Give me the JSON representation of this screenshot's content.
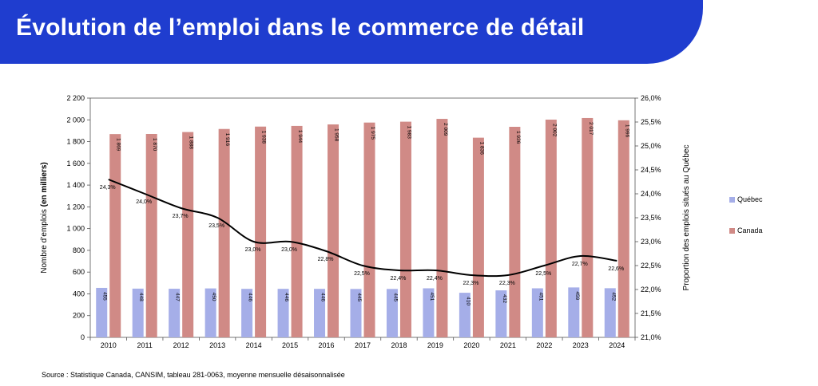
{
  "header": {
    "title": "Évolution de l’emploi dans le commerce de détail"
  },
  "source": "Source : Statistique Canada, CANSIM, tableau 281-0063, moyenne mensuelle désaisonnalisée",
  "chart_data": {
    "type": "bar",
    "categories": [
      "2010",
      "2011",
      "2012",
      "2013",
      "2014",
      "2015",
      "2016",
      "2017",
      "2018",
      "2019",
      "2020",
      "2021",
      "2022",
      "2023",
      "2024"
    ],
    "series": [
      {
        "name": "Québec",
        "type": "bar",
        "color": "#a5aee8",
        "values": [
          455,
          448,
          447,
          450,
          446,
          446,
          446,
          445,
          445,
          451,
          410,
          432,
          451,
          459,
          452
        ],
        "labels": [
          "455",
          "448",
          "447",
          "450",
          "446",
          "446",
          "446",
          "445",
          "445",
          "451",
          "410",
          "432",
          "451",
          "459",
          "452"
        ]
      },
      {
        "name": "Canada",
        "type": "bar",
        "color": "#d08a86",
        "values": [
          1869,
          1870,
          1888,
          1916,
          1938,
          1944,
          1958,
          1975,
          1983,
          2009,
          1836,
          1936,
          2002,
          2017,
          1996
        ],
        "labels": [
          "1 869",
          "1 870",
          "1 888",
          "1 916",
          "1 938",
          "1 944",
          "1 958",
          "1 975",
          "1 983",
          "2 009",
          "1 836",
          "1 936",
          "2 002",
          "2 017",
          "1 996"
        ]
      },
      {
        "type": "line",
        "axis": "right",
        "color": "#000000",
        "values": [
          24.3,
          24.0,
          23.7,
          23.5,
          23.0,
          23.0,
          22.8,
          22.5,
          22.4,
          22.4,
          22.3,
          22.3,
          22.5,
          22.7,
          22.6
        ],
        "labels": [
          "24,3%",
          "24,0%",
          "23,7%",
          "23,5%",
          "23,0%",
          "23,0%",
          "22,8%",
          "22,5%",
          "22,4%",
          "22,4%",
          "22,3%",
          "22,3%",
          "22,5%",
          "22,7%",
          "22,6%"
        ]
      }
    ],
    "ylabel": "Nombre d’emplois",
    "ylabel_bold": "(en milliers)",
    "y2label": "Proportion des emplois situés au Québec",
    "ylim": [
      0,
      2200
    ],
    "y2lim": [
      21.0,
      26.0
    ],
    "yticks": [
      0,
      200,
      400,
      600,
      800,
      1000,
      1200,
      1400,
      1600,
      1800,
      2000,
      2200
    ],
    "yticklabels": [
      "0",
      "200",
      "400",
      "600",
      "800",
      "1 000",
      "1 200",
      "1 400",
      "1 600",
      "1 800",
      "2 000",
      "2 200"
    ],
    "y2ticks": [
      21.0,
      21.5,
      22.0,
      22.5,
      23.0,
      23.5,
      24.0,
      24.5,
      25.0,
      25.5,
      26.0
    ],
    "y2ticklabels": [
      "21,0%",
      "21,5%",
      "22,0%",
      "22,5%",
      "23,0%",
      "23,5%",
      "24,0%",
      "24,5%",
      "25,0%",
      "25,5%",
      "26,0%"
    ],
    "grid": false,
    "legend": "right"
  }
}
